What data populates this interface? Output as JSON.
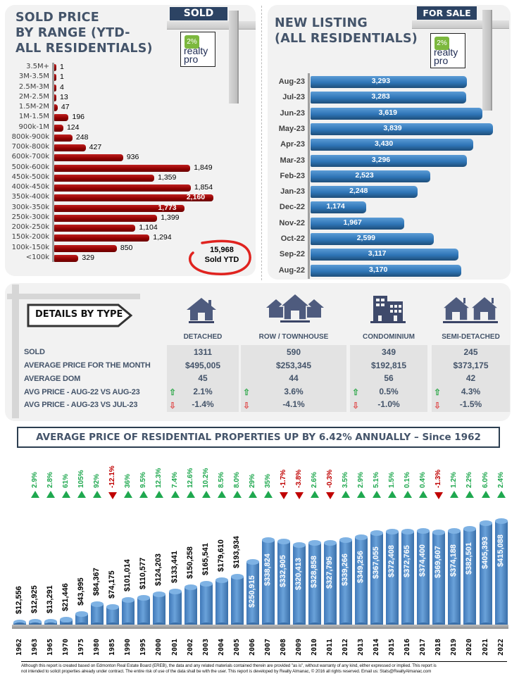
{
  "sold_panel": {
    "title_lines": [
      "SOLD PRICE",
      "BY RANGE (YTD-",
      "ALL RESIDENTIALS)"
    ],
    "sign_label": "SOLD",
    "total_value": "15,968",
    "total_label": "Sold YTD"
  },
  "listing_panel": {
    "title_lines": [
      "NEW LISTING",
      "(ALL RESIDENTIALS)"
    ],
    "sign_label": "FOR SALE"
  },
  "logo": {
    "pct": "2%",
    "line1": "realty",
    "line2": "pro"
  },
  "details": {
    "banner": "DETAILS BY TYPE",
    "row_labels": [
      "SOLD",
      "AVERAGE PRICE FOR THE MONTH",
      "AVERAGE DOM",
      "AVG PRICE - AUG-22 VS AUG-23",
      "AVG PRICE - AUG-23 VS JUL-23"
    ],
    "types": [
      {
        "name": "DETACHED",
        "icon": "house-icon",
        "sold": "1311",
        "avg_price": "$495,005",
        "dom": "45",
        "yoy": "2.1%",
        "mom": "-1.4%"
      },
      {
        "name": "ROW / TOWNHOUSE",
        "icon": "townhouse-icon",
        "sold": "590",
        "avg_price": "$253,345",
        "dom": "44",
        "yoy": "3.6%",
        "mom": "-4.1%"
      },
      {
        "name": "CONDOMINIUM",
        "icon": "condo-building-icon",
        "sold": "349",
        "avg_price": "$192,815",
        "dom": "56",
        "yoy": "0.5%",
        "mom": "-1.0%"
      },
      {
        "name": "SEMI-DETACHED",
        "icon": "semi-detached-icon",
        "sold": "245",
        "avg_price": "$373,175",
        "dom": "42",
        "yoy": "4.3%",
        "mom": "-1.5%"
      }
    ],
    "colors": {
      "up": "#2ea84a",
      "down": "#e05252"
    }
  },
  "annual_banner": "AVERAGE PRICE OF RESIDENTIAL PROPERTIES UP BY 6.42% ANNUALLY – Since 1962",
  "disclaimer": [
    "Although this report is created based on Edmonton Real Estate Board (EREB), the data and any related materials contained therein are provided \"as is\", without warranty of any kind, either expressed or implied.  This report is",
    "not intended to solicit properties already under contract.  The entire risk of use of the data shall be with the user.  This report is developed by Realty Almanac, © 2016 all rights reserved. Email us: Stats@RealtyAlmanac.com"
  ],
  "chart_data": [
    {
      "type": "bar",
      "orientation": "horizontal",
      "title": "SOLD PRICE BY RANGE (YTD- ALL RESIDENTIALS)",
      "categories": [
        "3.5M+",
        "3M-3.5M",
        "2.5M-3M",
        "2M-2.5M",
        "1.5M-2M",
        "1M-1.5M",
        "900k-1M",
        "800k-900k",
        "700k-800k",
        "600k-700k",
        "500k-600k",
        "450k-500k",
        "400k-450k",
        "350k-400k",
        "300k-350k",
        "250k-300k",
        "200k-250k",
        "150k-200k",
        "100k-150k",
        "<100k"
      ],
      "values": [
        1,
        1,
        4,
        13,
        47,
        196,
        124,
        248,
        427,
        936,
        1849,
        1359,
        1854,
        2160,
        1773,
        1399,
        1104,
        1294,
        850,
        329
      ],
      "labels": [
        "1",
        "1",
        "4",
        "13",
        "47",
        "196",
        "124",
        "248",
        "427",
        "936",
        "1,849",
        "1,359",
        "1,854",
        "2,160",
        "1,773",
        "1,399",
        "1,104",
        "1,294",
        "850",
        "329"
      ],
      "xlim": [
        0,
        2200
      ],
      "color": "#a00000"
    },
    {
      "type": "bar",
      "orientation": "horizontal",
      "title": "NEW LISTING (ALL RESIDENTIALS)",
      "categories": [
        "Aug-23",
        "Jul-23",
        "Jun-23",
        "May-23",
        "Apr-23",
        "Mar-23",
        "Feb-23",
        "Jan-23",
        "Dec-22",
        "Nov-22",
        "Oct-22",
        "Sep-22",
        "Aug-22"
      ],
      "values": [
        3293,
        3283,
        3619,
        3839,
        3430,
        3296,
        2523,
        2248,
        1174,
        1967,
        2599,
        3117,
        3170
      ],
      "labels": [
        "3,293",
        "3,283",
        "3,619",
        "3,839",
        "3,430",
        "3,296",
        "2,523",
        "2,248",
        "1,174",
        "1,967",
        "2,599",
        "3,117",
        "3,170"
      ],
      "xlim": [
        0,
        3900
      ],
      "color": "#2e75b6"
    },
    {
      "type": "bar",
      "orientation": "vertical",
      "title": "AVERAGE PRICE OF RESIDENTIAL PROPERTIES UP BY 6.42% ANNUALLY – Since 1962",
      "categories": [
        "1962",
        "1963",
        "1965",
        "1970",
        "1975",
        "1980",
        "1985",
        "1990",
        "1995",
        "2000",
        "2001",
        "2002",
        "2003",
        "2004",
        "2005",
        "2006",
        "2007",
        "2008",
        "2009",
        "2010",
        "2011",
        "2012",
        "2013",
        "2014",
        "2015",
        "2016",
        "2017",
        "2018",
        "2019",
        "2020",
        "2021",
        "2022"
      ],
      "values": [
        12556,
        12925,
        13291,
        21446,
        43995,
        84367,
        74175,
        101014,
        110577,
        124203,
        133441,
        150258,
        165541,
        179610,
        193934,
        250915,
        338824,
        332905,
        320413,
        328858,
        327795,
        339266,
        349256,
        367055,
        372408,
        372765,
        374400,
        369607,
        374188,
        382501,
        405393,
        415088
      ],
      "labels": [
        "$12,556",
        "$12,925",
        "$13,291",
        "$21,446",
        "$43,995",
        "$84,367",
        "$74,175",
        "$101,014",
        "$110,577",
        "$124,203",
        "$133,441",
        "$150,258",
        "$165,541",
        "$179,610",
        "$193,934",
        "$250,915",
        "$338,824",
        "$332,905",
        "$320,413",
        "$328,858",
        "$327,795",
        "$339,266",
        "$349,256",
        "$367,055",
        "$372,408",
        "$372,765",
        "$374,400",
        "$369,607",
        "$374,188",
        "$382,501",
        "$405,393",
        "$415,088"
      ],
      "changes": [
        "2.9%",
        "2.8%",
        "61%",
        "105%",
        "92%",
        "-12.1%",
        "36%",
        "9.5%",
        "12.3%",
        "7.4%",
        "12.6%",
        "10.2%",
        "8.5%",
        "8.0%",
        "29%",
        "35%",
        "-1.7%",
        "-3.8%",
        "2.6%",
        "-0.3%",
        "3.5%",
        "2.9%",
        "5.1%",
        "1.5%",
        "0.1%",
        "0.4%",
        "-1.3%",
        "1.2%",
        "2.2%",
        "6.0%",
        "2.4%"
      ],
      "ylim": [
        0,
        420000
      ],
      "colors": {
        "bar": "#5b9bd5",
        "up": "#1fa84f",
        "down": "#c00000"
      }
    }
  ]
}
